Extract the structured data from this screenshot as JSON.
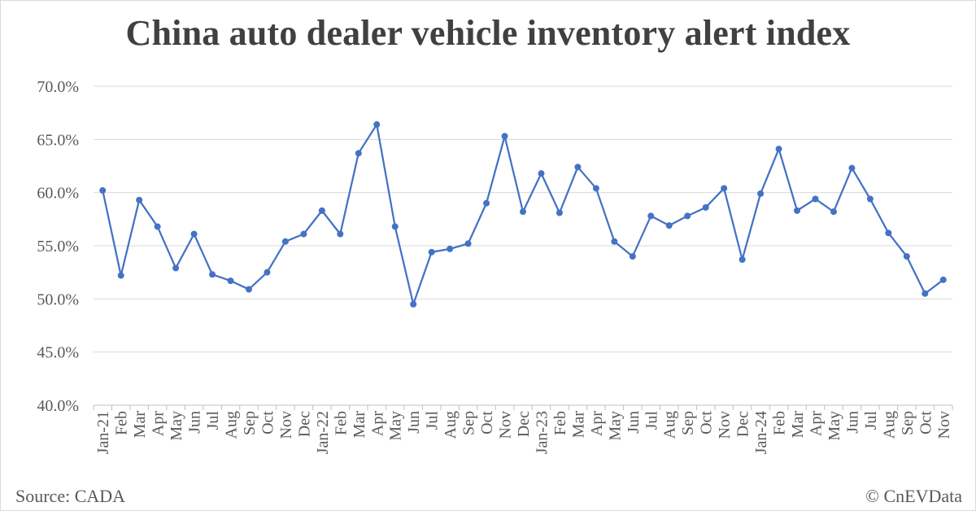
{
  "header": {
    "title": "China auto dealer vehicle inventory alert index"
  },
  "footer": {
    "source": "Source: CADA",
    "credit": "© CnEVData"
  },
  "colors": {
    "series": "#4472C4",
    "grid": "#d9d9d9",
    "text": "#595959",
    "title": "#404040"
  },
  "chart_data": {
    "type": "line",
    "title": "China auto dealer vehicle inventory alert index",
    "xlabel": "",
    "ylabel": "",
    "ylim": [
      40,
      70
    ],
    "y_ticks": [
      "40.0%",
      "45.0%",
      "50.0%",
      "55.0%",
      "60.0%",
      "65.0%",
      "70.0%"
    ],
    "y_tick_values": [
      40,
      45,
      50,
      55,
      60,
      65,
      70
    ],
    "grid": true,
    "legend": "none",
    "categories": [
      "Jan-21",
      "Feb",
      "Mar",
      "Apr",
      "May",
      "Jun",
      "Jul",
      "Aug",
      "Sep",
      "Oct",
      "Nov",
      "Dec",
      "Jan-22",
      "Feb",
      "Mar",
      "Apr",
      "May",
      "Jun",
      "Jul",
      "Aug",
      "Sep",
      "Oct",
      "Nov",
      "Dec",
      "Jan-23",
      "Feb",
      "Mar",
      "Apr",
      "May",
      "Jun",
      "Jul",
      "Aug",
      "Sep",
      "Oct",
      "Nov",
      "Dec",
      "Jan-24",
      "Feb",
      "Mar",
      "Apr",
      "May",
      "Jun",
      "Jul",
      "Aug",
      "Sep",
      "Oct",
      "Nov"
    ],
    "series": [
      {
        "values": [
          60.2,
          52.2,
          59.3,
          56.8,
          52.9,
          56.1,
          52.3,
          51.7,
          50.9,
          52.5,
          55.4,
          56.1,
          58.3,
          56.1,
          63.7,
          66.4,
          56.8,
          49.5,
          54.4,
          54.7,
          55.2,
          59.0,
          65.3,
          58.2,
          61.8,
          58.1,
          62.4,
          60.4,
          55.4,
          54.0,
          57.8,
          56.9,
          57.8,
          58.6,
          60.4,
          53.7,
          59.9,
          64.1,
          58.3,
          59.4,
          58.2,
          62.3,
          59.4,
          56.2,
          54.0,
          50.5,
          51.8
        ]
      }
    ]
  }
}
